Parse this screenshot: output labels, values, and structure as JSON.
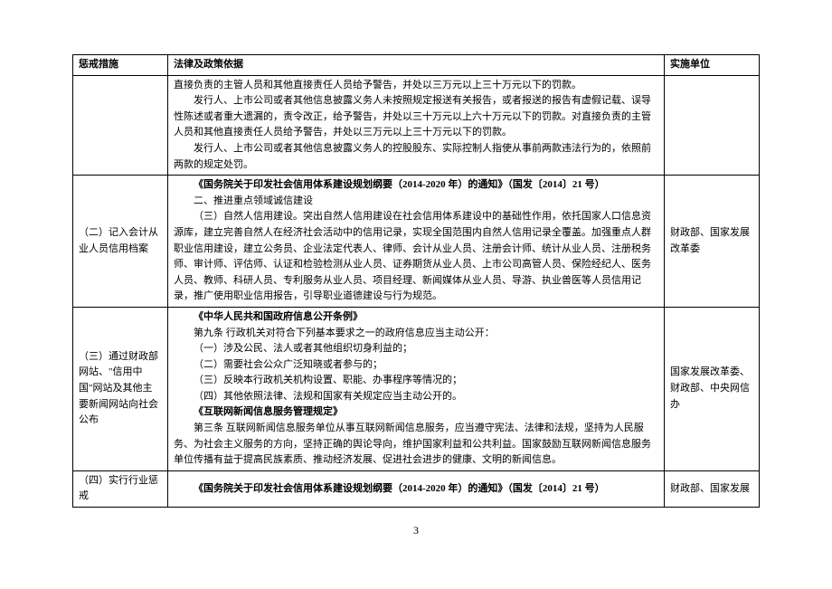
{
  "headers": {
    "measure": "惩戒措施",
    "basis": "法律及政策依据",
    "unit": "实施单位"
  },
  "rows": [
    {
      "measure": "",
      "basis_lines": [
        {
          "text": "直接负责的主管人员和其他直接责任人员给予警告，并处以三万元以上三十万元以下的罚款。",
          "cls": ""
        },
        {
          "text": "发行人、上市公司或者其他信息披露义务人未按照规定报送有关报告，或者报送的报告有虚假记载、误导性陈述或者重大遗漏的，责令改正，给予警告，并处以三十万元以上六十万元以下的罚款。对直接负责的主管人员和其他直接责任人员给予警告，并处以三万元以上三十万元以下的罚款。",
          "cls": "indent"
        },
        {
          "text": "发行人、上市公司或者其他信息披露义务人的控股股东、实际控制人指使从事前两款违法行为的，依照前两款的规定处罚。",
          "cls": "indent"
        }
      ],
      "unit": ""
    },
    {
      "measure": "（二）记入会计从业人员信用档案",
      "basis_lines": [
        {
          "text": "《国务院关于印发社会信用体系建设规划纲要（2014-2020 年）的通知》（国发〔2014〕21 号）",
          "cls": "indent bold"
        },
        {
          "text": "二、推进重点领域诚信建设",
          "cls": "indent"
        },
        {
          "text": "（三）自然人信用建设。突出自然人信用建设在社会信用体系建设中的基础性作用，依托国家人口信息资源库，建立完善自然人在经济社会活动中的信用记录，实现全国范围内自然人信用记录全覆盖。加强重点人群职业信用建设，建立公务员、企业法定代表人、律师、会计从业人员、注册会计师、统计从业人员、注册税务师、审计师、评估师、认证和检验检测从业人员、证券期货从业人员、上市公司高管人员、保险经纪人、医务人员、教师、科研人员、专利服务从业人员、项目经理、新闻媒体从业人员、导游、执业兽医等人员信用记录，推广使用职业信用报告，引导职业道德建设与行为规范。",
          "cls": "indent"
        }
      ],
      "unit": "财政部、国家发展改革委"
    },
    {
      "measure": "（三）通过财政部网站、\"信用中国\"网站及其他主要新闻网站向社会公布",
      "basis_lines": [
        {
          "text": "《中华人民共和国政府信息公开条例》",
          "cls": "indent bold"
        },
        {
          "text": "第九条  行政机关对符合下列基本要求之一的政府信息应当主动公开：",
          "cls": "indent"
        },
        {
          "text": "（一）涉及公民、法人或者其他组织切身利益的；",
          "cls": "indent"
        },
        {
          "text": "（二）需要社会公众广泛知晓或者参与的；",
          "cls": "indent"
        },
        {
          "text": "（三）反映本行政机关机构设置、职能、办事程序等情况的；",
          "cls": "indent"
        },
        {
          "text": "（四）其他依照法律、法规和国家有关规定应当主动公开的。",
          "cls": "indent"
        },
        {
          "text": "《互联网新闻信息服务管理规定》",
          "cls": "indent bold"
        },
        {
          "text": "第三条  互联网新闻信息服务单位从事互联网新闻信息服务，应当遵守宪法、法律和法规，坚持为人民服务、为社会主义服务的方向，坚持正确的舆论导向，维护国家利益和公共利益。国家鼓励互联网新闻信息服务单位传播有益于提高民族素质、推动经济发展、促进社会进步的健康、文明的新闻信息。",
          "cls": "indent"
        }
      ],
      "unit": "国家发展改革委、财政部、中央网信办"
    },
    {
      "measure": "（四）实行行业惩戒",
      "basis_lines": [
        {
          "text": "《国务院关于印发社会信用体系建设规划纲要（2014-2020 年）的通知》（国发〔2014〕21 号）",
          "cls": "indent bold"
        }
      ],
      "unit": "财政部、国家发展"
    }
  ],
  "page_number": "3"
}
